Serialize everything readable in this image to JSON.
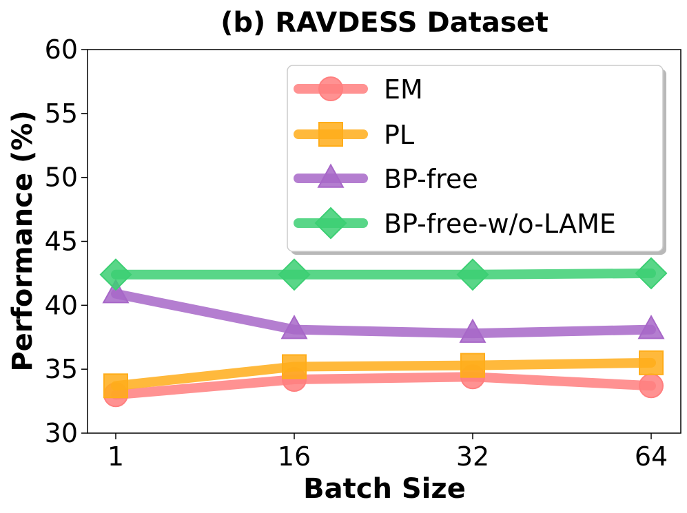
{
  "chart_data": {
    "type": "line",
    "title": "(b) RAVDESS Dataset",
    "xlabel": "Batch Size",
    "ylabel": "Performance (%)",
    "categories": [
      "1",
      "16",
      "32",
      "64"
    ],
    "ylim": [
      30,
      60
    ],
    "yticks": [
      30,
      35,
      40,
      45,
      50,
      55,
      60
    ],
    "grid": false,
    "legend_position": "top-right",
    "series": [
      {
        "name": "EM",
        "marker": "circle",
        "color": "#ff7f7f",
        "values": [
          33.0,
          34.2,
          34.4,
          33.7
        ]
      },
      {
        "name": "PL",
        "marker": "square",
        "color": "#ffad1a",
        "values": [
          33.7,
          35.2,
          35.3,
          35.5
        ]
      },
      {
        "name": "BP-free",
        "marker": "triangle",
        "color": "#a767c8",
        "values": [
          40.9,
          38.1,
          37.8,
          38.1
        ]
      },
      {
        "name": "BP-free-w/o-LAME",
        "marker": "diamond",
        "color": "#3ccf73",
        "values": [
          42.4,
          42.4,
          42.4,
          42.5
        ]
      }
    ]
  }
}
